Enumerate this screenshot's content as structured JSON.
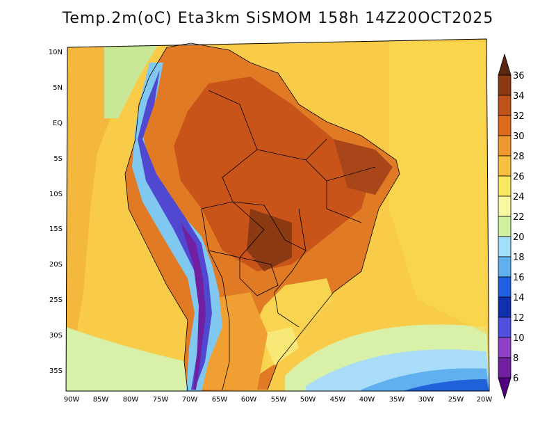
{
  "title": "Temp.2m(oC) Eta3km SiSMOM 158h 14Z20OCT2025",
  "map": {
    "region": "South America",
    "lat_labels": [
      "10N",
      "5N",
      "EQ",
      "5S",
      "10S",
      "15S",
      "20S",
      "25S",
      "30S",
      "35S"
    ],
    "lon_labels": [
      "90W",
      "85W",
      "80W",
      "75W",
      "70W",
      "65W",
      "60W",
      "55W",
      "50W",
      "45W",
      "40W",
      "35W",
      "30W",
      "25W",
      "20W"
    ]
  },
  "colorbar": {
    "levels": [
      "36",
      "34",
      "32",
      "30",
      "28",
      "26",
      "24",
      "22",
      "20",
      "18",
      "16",
      "14",
      "12",
      "10",
      "8",
      "6"
    ],
    "colors": [
      "#5a2810",
      "#8b3a14",
      "#c0521a",
      "#e06a1c",
      "#f09830",
      "#f8c040",
      "#f8e860",
      "#f8f8a0",
      "#d0f0a0",
      "#a0e0f8",
      "#60b0f0",
      "#2060e0",
      "#1030b0",
      "#5050e0",
      "#9040c8",
      "#7020a0",
      "#500080"
    ]
  }
}
